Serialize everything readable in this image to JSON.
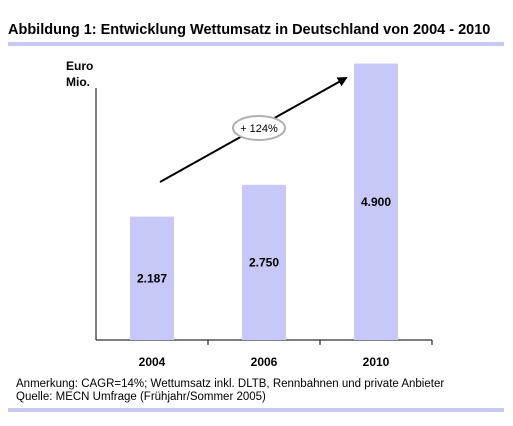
{
  "colors": {
    "bar": "#c8c8f8",
    "rule": "#c8c8f0",
    "axis": "#000000",
    "ellipse": "#b0b0b0"
  },
  "chart_data": {
    "type": "bar",
    "title": "Abbildung 1: Entwicklung Wettumsatz in Deutschland von 2004 - 2010",
    "ylabel_lines": [
      "Euro",
      "Mio."
    ],
    "categories": [
      "2004",
      "2006",
      "2010"
    ],
    "values": [
      2187,
      2750,
      4900
    ],
    "value_labels": [
      "2.187",
      "2.750",
      "4.900"
    ],
    "ylim": [
      0,
      5600
    ],
    "grid": false,
    "annotations": [
      {
        "text": "+ 124%",
        "type": "growth-arrow",
        "from": "2004",
        "to": "2010"
      }
    ]
  },
  "notes": {
    "anmerkung": "Anmerkung: CAGR=14%; Wettumsatz inkl. DLTB, Rennbahnen und private Anbieter",
    "quelle": "Quelle: MECN Umfrage (Frühjahr/Sommer 2005)"
  }
}
